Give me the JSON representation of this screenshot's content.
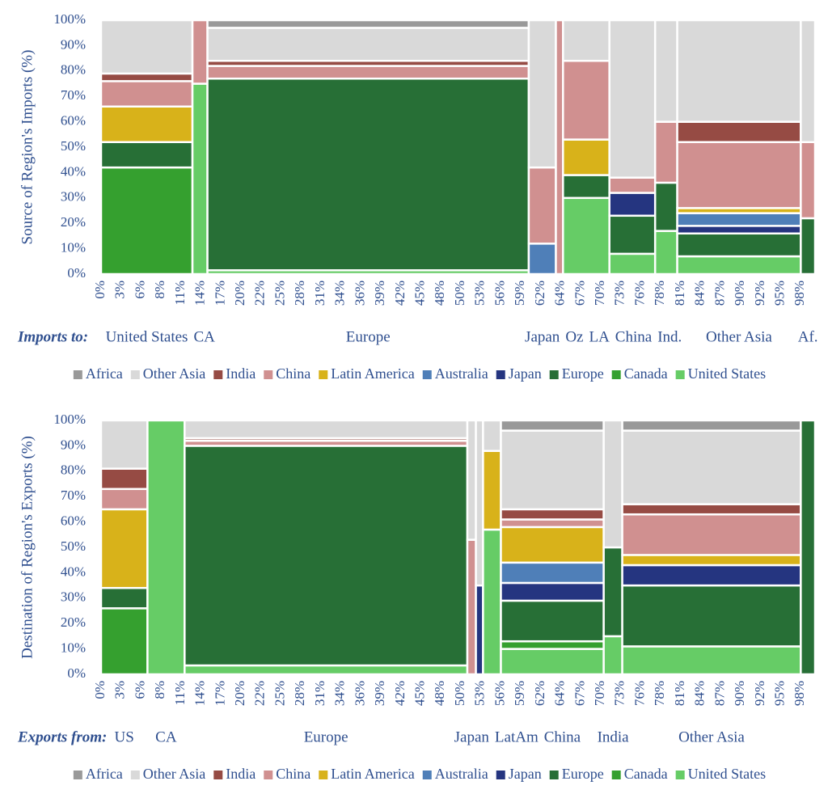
{
  "chart_data": [
    {
      "type": "mekko",
      "prefix": "Imports to:",
      "y_label": "Source of Region's Imports (%)",
      "categories": [
        "United States",
        "CA",
        "Europe",
        "Japan",
        "Oz",
        "LA",
        "China",
        "Ind.",
        "Other Asia",
        "Af."
      ],
      "widths": [
        12.8,
        2.1,
        45,
        3.8,
        1,
        6.5,
        6.4,
        3.1,
        17.3,
        2
      ],
      "xlim": [
        0,
        100
      ],
      "xticks": [
        {
          "value": 0,
          "label": "0%"
        },
        {
          "value": 2.8,
          "label": "3%"
        },
        {
          "value": 5.6,
          "label": "6%"
        },
        {
          "value": 8.4,
          "label": "8%"
        },
        {
          "value": 11.2,
          "label": "11%"
        },
        {
          "value": 14,
          "label": "14%"
        },
        {
          "value": 16.8,
          "label": "17%"
        },
        {
          "value": 19.6,
          "label": "20%"
        },
        {
          "value": 22.4,
          "label": "22%"
        },
        {
          "value": 25.2,
          "label": "25%"
        },
        {
          "value": 28,
          "label": "28%"
        },
        {
          "value": 30.8,
          "label": "31%"
        },
        {
          "value": 33.6,
          "label": "34%"
        },
        {
          "value": 36.4,
          "label": "36%"
        },
        {
          "value": 39.2,
          "label": "39%"
        },
        {
          "value": 42,
          "label": "42%"
        },
        {
          "value": 44.8,
          "label": "45%"
        },
        {
          "value": 47.6,
          "label": "48%"
        },
        {
          "value": 50.4,
          "label": "50%"
        },
        {
          "value": 53.2,
          "label": "53%"
        },
        {
          "value": 56,
          "label": "56%"
        },
        {
          "value": 58.8,
          "label": "59%"
        },
        {
          "value": 61.6,
          "label": "62%"
        },
        {
          "value": 64.4,
          "label": "64%"
        },
        {
          "value": 67.2,
          "label": "67%"
        },
        {
          "value": 70,
          "label": "70%"
        },
        {
          "value": 72.8,
          "label": "73%"
        },
        {
          "value": 75.6,
          "label": "76%"
        },
        {
          "value": 78.4,
          "label": "78%"
        },
        {
          "value": 81.2,
          "label": "81%"
        },
        {
          "value": 84,
          "label": "84%"
        },
        {
          "value": 86.8,
          "label": "87%"
        },
        {
          "value": 89.6,
          "label": "90%"
        },
        {
          "value": 92.4,
          "label": "92%"
        },
        {
          "value": 95.2,
          "label": "95%"
        },
        {
          "value": 98,
          "label": "98%"
        }
      ],
      "ylim": [
        0,
        100
      ],
      "yticks": [
        {
          "value": 0,
          "label": "0%"
        },
        {
          "value": 10,
          "label": "10%"
        },
        {
          "value": 20,
          "label": "20%"
        },
        {
          "value": 30,
          "label": "30%"
        },
        {
          "value": 40,
          "label": "40%"
        },
        {
          "value": 50,
          "label": "50%"
        },
        {
          "value": 60,
          "label": "60%"
        },
        {
          "value": 70,
          "label": "70%"
        },
        {
          "value": 80,
          "label": "80%"
        },
        {
          "value": 90,
          "label": "90%"
        },
        {
          "value": 100,
          "label": "100%"
        }
      ],
      "legend": "bottom",
      "series": [
        {
          "name": "United States",
          "color": "#66cc66",
          "values": [
            0,
            75,
            1.5,
            0,
            0,
            30,
            8,
            17,
            7,
            0
          ]
        },
        {
          "name": "Canada",
          "color": "#35a02f",
          "values": [
            42,
            0,
            0,
            0,
            0,
            0,
            0,
            0,
            0,
            0
          ]
        },
        {
          "name": "Europe",
          "color": "#276f36",
          "values": [
            10,
            0,
            75.5,
            0,
            0,
            9,
            15,
            19,
            9,
            22
          ]
        },
        {
          "name": "Japan",
          "color": "#253580",
          "values": [
            0,
            0,
            0,
            0,
            0,
            0,
            9,
            0,
            3,
            0
          ]
        },
        {
          "name": "Australia",
          "color": "#4f7fb8",
          "values": [
            0,
            0,
            0,
            12,
            0,
            0,
            0,
            0,
            5,
            0
          ]
        },
        {
          "name": "Latin America",
          "color": "#d8b21a",
          "values": [
            14,
            0,
            0,
            0,
            0,
            14,
            0,
            0,
            2,
            0
          ]
        },
        {
          "name": "China",
          "color": "#d09090",
          "values": [
            10,
            25,
            5,
            30,
            100,
            31,
            6,
            24,
            26,
            30
          ]
        },
        {
          "name": "India",
          "color": "#964b44",
          "values": [
            3,
            0,
            2,
            0,
            0,
            0,
            0,
            0,
            8,
            0
          ]
        },
        {
          "name": "Other Asia",
          "color": "#d9d9d9",
          "values": [
            21,
            0,
            13,
            58,
            0,
            16,
            62,
            40,
            40,
            48
          ]
        },
        {
          "name": "Africa",
          "color": "#999999",
          "values": [
            0,
            0,
            3,
            0,
            0,
            0,
            0,
            0,
            0,
            0
          ]
        }
      ]
    },
    {
      "type": "mekko",
      "prefix": "Exports from:",
      "y_label": "Destination of Region's Exports (%)",
      "categories": [
        "US",
        "CA",
        "Europe",
        "Japan",
        null,
        "LatAm",
        "China",
        "India",
        "Other Asia",
        null
      ],
      "widths": [
        6.5,
        5.2,
        39.6,
        1.2,
        1,
        2.5,
        14.4,
        2.6,
        25,
        2
      ],
      "xlim": [
        0,
        100
      ],
      "xticks": [
        {
          "value": 0,
          "label": "0%"
        },
        {
          "value": 2.8,
          "label": "3%"
        },
        {
          "value": 5.6,
          "label": "6%"
        },
        {
          "value": 8.4,
          "label": "8%"
        },
        {
          "value": 11.2,
          "label": "11%"
        },
        {
          "value": 14,
          "label": "14%"
        },
        {
          "value": 16.8,
          "label": "17%"
        },
        {
          "value": 19.6,
          "label": "20%"
        },
        {
          "value": 22.4,
          "label": "22%"
        },
        {
          "value": 25.2,
          "label": "25%"
        },
        {
          "value": 28,
          "label": "28%"
        },
        {
          "value": 30.8,
          "label": "31%"
        },
        {
          "value": 33.6,
          "label": "34%"
        },
        {
          "value": 36.4,
          "label": "36%"
        },
        {
          "value": 39.2,
          "label": "39%"
        },
        {
          "value": 42,
          "label": "42%"
        },
        {
          "value": 44.8,
          "label": "45%"
        },
        {
          "value": 47.6,
          "label": "48%"
        },
        {
          "value": 50.4,
          "label": "50%"
        },
        {
          "value": 53.2,
          "label": "53%"
        },
        {
          "value": 56,
          "label": "56%"
        },
        {
          "value": 58.8,
          "label": "59%"
        },
        {
          "value": 61.6,
          "label": "62%"
        },
        {
          "value": 64.4,
          "label": "64%"
        },
        {
          "value": 67.2,
          "label": "67%"
        },
        {
          "value": 70,
          "label": "70%"
        },
        {
          "value": 72.8,
          "label": "73%"
        },
        {
          "value": 75.6,
          "label": "76%"
        },
        {
          "value": 78.4,
          "label": "78%"
        },
        {
          "value": 81.2,
          "label": "81%"
        },
        {
          "value": 84,
          "label": "84%"
        },
        {
          "value": 86.8,
          "label": "87%"
        },
        {
          "value": 89.6,
          "label": "90%"
        },
        {
          "value": 92.4,
          "label": "92%"
        },
        {
          "value": 95.2,
          "label": "95%"
        },
        {
          "value": 98,
          "label": "98%"
        }
      ],
      "ylim": [
        0,
        100
      ],
      "yticks": [
        {
          "value": 0,
          "label": "0%"
        },
        {
          "value": 10,
          "label": "10%"
        },
        {
          "value": 20,
          "label": "20%"
        },
        {
          "value": 30,
          "label": "30%"
        },
        {
          "value": 40,
          "label": "40%"
        },
        {
          "value": 50,
          "label": "50%"
        },
        {
          "value": 60,
          "label": "60%"
        },
        {
          "value": 70,
          "label": "70%"
        },
        {
          "value": 80,
          "label": "80%"
        },
        {
          "value": 90,
          "label": "90%"
        },
        {
          "value": 100,
          "label": "100%"
        }
      ],
      "legend": "bottom",
      "series": [
        {
          "name": "United States",
          "color": "#66cc66",
          "values": [
            0,
            100,
            3.5,
            0,
            0,
            57,
            10,
            15,
            11,
            0
          ]
        },
        {
          "name": "Canada",
          "color": "#35a02f",
          "values": [
            26,
            0,
            0,
            0,
            0,
            0,
            3,
            0,
            0,
            0
          ]
        },
        {
          "name": "Europe",
          "color": "#276f36",
          "values": [
            8,
            0,
            86.5,
            0,
            0,
            0,
            16,
            35,
            24,
            100
          ]
        },
        {
          "name": "Japan",
          "color": "#253580",
          "values": [
            0,
            0,
            0,
            0,
            35,
            0,
            7,
            0,
            8,
            0
          ]
        },
        {
          "name": "Australia",
          "color": "#4f7fb8",
          "values": [
            0,
            0,
            0,
            0,
            0,
            0,
            8,
            0,
            0,
            0
          ]
        },
        {
          "name": "Latin America",
          "color": "#d8b21a",
          "values": [
            31,
            0,
            0,
            0,
            0,
            31,
            14,
            0,
            4,
            0
          ]
        },
        {
          "name": "China",
          "color": "#d09090",
          "values": [
            8,
            0,
            2,
            53,
            0,
            0,
            3,
            0,
            16,
            0
          ]
        },
        {
          "name": "India",
          "color": "#964b44",
          "values": [
            8,
            0,
            1,
            0,
            0,
            0,
            4,
            0,
            4,
            0
          ]
        },
        {
          "name": "Other Asia",
          "color": "#d9d9d9",
          "values": [
            19,
            0,
            7,
            47,
            65,
            12,
            31,
            50,
            29,
            0
          ]
        },
        {
          "name": "Africa",
          "color": "#999999",
          "values": [
            0,
            0,
            0,
            0,
            0,
            0,
            4,
            0,
            4,
            0
          ]
        }
      ]
    }
  ]
}
